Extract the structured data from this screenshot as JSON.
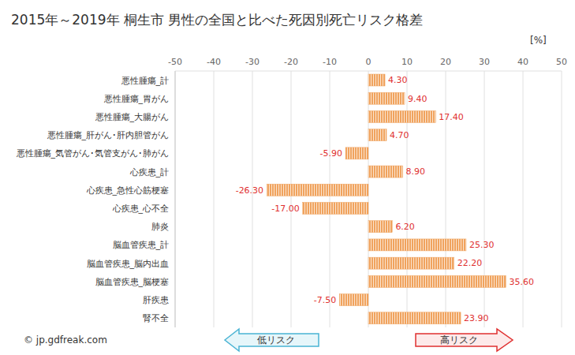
{
  "chart_data": {
    "type": "bar",
    "orientation": "horizontal",
    "title": "2015年～2019年 桐生市 男性の全国と比べた死因別死亡リスク格差",
    "xlabel": "[%]",
    "categories": [
      "悪性腫瘍_計",
      "悪性腫瘍_胃がん",
      "悪性腫瘍_大腸がん",
      "悪性腫瘍_肝がん･肝内胆管がん",
      "悪性腫瘍_気管がん･気管支がん･肺がん",
      "心疾患_計",
      "心疾患_急性心筋梗塞",
      "心疾患_心不全",
      "肺炎",
      "脳血管疾患_計",
      "脳血管疾患_脳内出血",
      "脳血管疾患_脳梗塞",
      "肝疾患",
      "腎不全"
    ],
    "values": [
      4.3,
      9.4,
      17.4,
      4.7,
      -5.9,
      8.9,
      -26.3,
      -17.0,
      6.2,
      25.3,
      22.2,
      35.6,
      -7.5,
      23.9
    ],
    "value_labels": [
      "4.30",
      "9.40",
      "17.40",
      "4.70",
      "-5.90",
      "8.90",
      "-26.30",
      "-17.00",
      "6.20",
      "25.30",
      "22.20",
      "35.60",
      "-7.50",
      "23.90"
    ],
    "color": "#f0a35e",
    "xlim": [
      -50,
      50
    ],
    "xticks": [
      -50,
      -40,
      -30,
      -20,
      -10,
      0,
      10,
      20,
      30,
      40,
      50
    ],
    "grid": true,
    "data_labels": true,
    "annotations": [
      "© jp.gdfreak.com",
      "低リスク",
      "高リスク"
    ]
  }
}
